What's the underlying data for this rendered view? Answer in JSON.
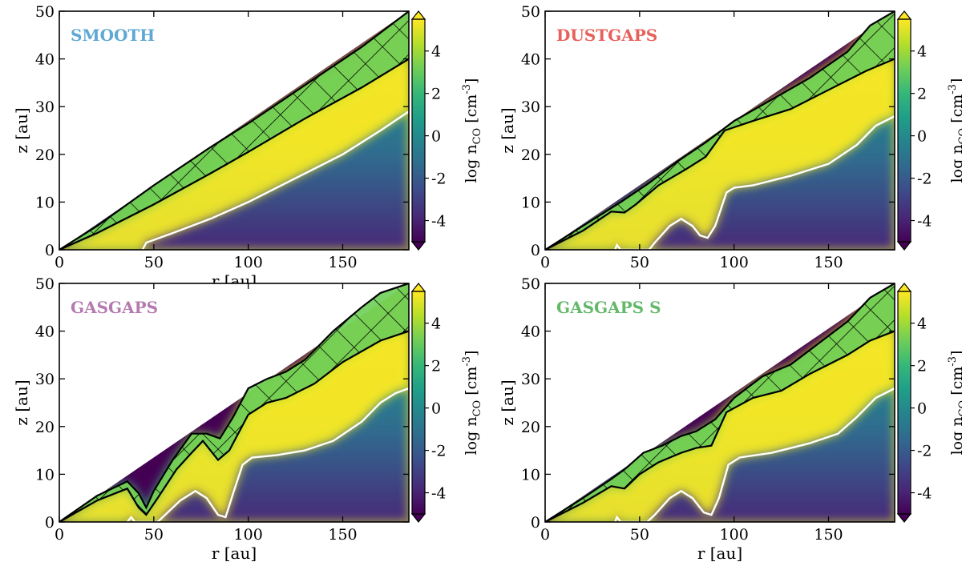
{
  "figure": {
    "columns": 2,
    "rows": 2
  },
  "colors": {
    "viridis": [
      "#440154",
      "#482878",
      "#3e4989",
      "#31688e",
      "#26828e",
      "#1f9e89",
      "#35b779",
      "#6ece58",
      "#b5de2b",
      "#fde725"
    ],
    "panel_titles": [
      "#5fa8d3",
      "#e8605a",
      "#b57ab0",
      "#63b86a"
    ],
    "snow_line": "#ffffff",
    "hatch": "#000000"
  },
  "chart_data": [
    {
      "type": "heatmap",
      "title": "SMOOTH",
      "xlabel": "r [au]",
      "ylabel": "z [au]",
      "xlim": [
        0,
        185
      ],
      "ylim": [
        0,
        50
      ],
      "xticks": [
        0,
        50,
        100,
        150
      ],
      "yticks": [
        0,
        10,
        20,
        30,
        40,
        50
      ],
      "colorbar": {
        "label_main": "log n",
        "label_sub": "CO",
        "label_unit": " [cm",
        "label_exp": "-3",
        "label_close": "]",
        "ticks": [
          4,
          2,
          0,
          -2,
          -4
        ],
        "range": [
          -5,
          5.5
        ],
        "extend": "both"
      },
      "molecular_layer_top": [
        [
          0,
          0
        ],
        [
          20,
          5
        ],
        [
          50,
          13.5
        ],
        [
          80,
          21.5
        ],
        [
          100,
          26.5
        ],
        [
          130,
          34.5
        ],
        [
          160,
          42.5
        ],
        [
          185,
          50
        ]
      ],
      "molecular_layer_bottom": [
        [
          0,
          0
        ],
        [
          20,
          3.5
        ],
        [
          50,
          9.5
        ],
        [
          80,
          16
        ],
        [
          100,
          20.5
        ],
        [
          130,
          27.5
        ],
        [
          160,
          34
        ],
        [
          185,
          40
        ]
      ],
      "freeze_out_contour": [
        [
          44,
          0
        ],
        [
          46,
          1.5
        ],
        [
          60,
          3.5
        ],
        [
          80,
          6.5
        ],
        [
          100,
          10
        ],
        [
          120,
          14
        ],
        [
          150,
          20
        ],
        [
          170,
          25
        ],
        [
          185,
          29
        ]
      ]
    },
    {
      "type": "heatmap",
      "title": "DUSTGAPS",
      "xlabel": "",
      "ylabel": "z [au]",
      "xlim": [
        0,
        185
      ],
      "ylim": [
        0,
        50
      ],
      "xticks": [
        0,
        50,
        100,
        150
      ],
      "yticks": [
        0,
        10,
        20,
        30,
        40,
        50
      ],
      "colorbar": {
        "label_main": "log n",
        "label_sub": "CO",
        "label_unit": " [cm",
        "label_exp": "-3",
        "label_close": "]",
        "ticks": [
          4,
          2,
          0,
          -2,
          -4
        ],
        "range": [
          -5,
          5.5
        ],
        "extend": "both"
      },
      "molecular_layer_top": [
        [
          0,
          0
        ],
        [
          20,
          5
        ],
        [
          40,
          10
        ],
        [
          55,
          14
        ],
        [
          70,
          18.5
        ],
        [
          85,
          22.5
        ],
        [
          100,
          27
        ],
        [
          120,
          31.5
        ],
        [
          140,
          36
        ],
        [
          160,
          41.5
        ],
        [
          172,
          47
        ],
        [
          185,
          50
        ]
      ],
      "molecular_layer_bottom": [
        [
          0,
          0
        ],
        [
          20,
          4
        ],
        [
          35,
          8
        ],
        [
          42,
          7.8
        ],
        [
          48,
          9.5
        ],
        [
          60,
          13.5
        ],
        [
          75,
          17
        ],
        [
          85,
          19.5
        ],
        [
          95,
          25
        ],
        [
          110,
          27
        ],
        [
          130,
          29.5
        ],
        [
          150,
          33.5
        ],
        [
          170,
          37.5
        ],
        [
          185,
          40
        ]
      ],
      "freeze_out_contour": [
        [
          37,
          0
        ],
        [
          38,
          1
        ],
        [
          40,
          0
        ],
        [
          55,
          0
        ],
        [
          58,
          1.5
        ],
        [
          66,
          5
        ],
        [
          72,
          6.5
        ],
        [
          78,
          5
        ],
        [
          82,
          3
        ],
        [
          86,
          2.5
        ],
        [
          90,
          5
        ],
        [
          96,
          12
        ],
        [
          100,
          13
        ],
        [
          110,
          13.5
        ],
        [
          130,
          15.5
        ],
        [
          150,
          18
        ],
        [
          165,
          22
        ],
        [
          175,
          26
        ],
        [
          185,
          28
        ]
      ]
    },
    {
      "type": "heatmap",
      "title": "GASGAPS",
      "xlabel": "r [au]",
      "ylabel": "z [au]",
      "xlim": [
        0,
        185
      ],
      "ylim": [
        0,
        50
      ],
      "xticks": [
        0,
        50,
        100,
        150
      ],
      "yticks": [
        0,
        10,
        20,
        30,
        40,
        50
      ],
      "colorbar": {
        "label_main": "log n",
        "label_sub": "CO",
        "label_unit": " [cm",
        "label_exp": "-3",
        "label_close": "]",
        "ticks": [
          4,
          2,
          0,
          -2,
          -4
        ],
        "range": [
          -5,
          5.5
        ],
        "extend": "both"
      },
      "molecular_layer_top": [
        [
          0,
          0
        ],
        [
          20,
          5.5
        ],
        [
          36,
          8.5
        ],
        [
          42,
          6
        ],
        [
          46,
          3
        ],
        [
          50,
          6.5
        ],
        [
          60,
          13
        ],
        [
          70,
          18.5
        ],
        [
          78,
          18.5
        ],
        [
          85,
          17.5
        ],
        [
          92,
          22
        ],
        [
          100,
          28
        ],
        [
          110,
          30
        ],
        [
          120,
          31.5
        ],
        [
          130,
          34
        ],
        [
          145,
          40
        ],
        [
          160,
          45
        ],
        [
          170,
          48
        ],
        [
          185,
          50
        ]
      ],
      "molecular_layer_bottom": [
        [
          0,
          0
        ],
        [
          20,
          4.5
        ],
        [
          36,
          7
        ],
        [
          42,
          3
        ],
        [
          46,
          1.5
        ],
        [
          52,
          5
        ],
        [
          62,
          11
        ],
        [
          70,
          14.5
        ],
        [
          76,
          17
        ],
        [
          84,
          13
        ],
        [
          90,
          15
        ],
        [
          100,
          22.5
        ],
        [
          110,
          25
        ],
        [
          120,
          26
        ],
        [
          135,
          29
        ],
        [
          150,
          33.5
        ],
        [
          170,
          38
        ],
        [
          185,
          40
        ]
      ],
      "freeze_out_contour": [
        [
          36,
          0
        ],
        [
          38,
          1
        ],
        [
          40,
          0
        ],
        [
          52,
          0
        ],
        [
          56,
          1.5
        ],
        [
          64,
          4.5
        ],
        [
          72,
          6.5
        ],
        [
          78,
          5
        ],
        [
          84,
          1.5
        ],
        [
          88,
          1
        ],
        [
          92,
          6
        ],
        [
          97,
          12
        ],
        [
          102,
          13.5
        ],
        [
          115,
          14
        ],
        [
          130,
          15
        ],
        [
          145,
          17
        ],
        [
          160,
          21
        ],
        [
          170,
          25
        ],
        [
          178,
          27
        ],
        [
          185,
          28
        ]
      ]
    },
    {
      "type": "heatmap",
      "title": "GASGAPS S",
      "xlabel": "r [au]",
      "ylabel": "z [au]",
      "xlim": [
        0,
        185
      ],
      "ylim": [
        0,
        50
      ],
      "xticks": [
        0,
        50,
        100,
        150
      ],
      "yticks": [
        0,
        10,
        20,
        30,
        40,
        50
      ],
      "colorbar": {
        "label_main": "log n",
        "label_sub": "CO",
        "label_unit": " [cm",
        "label_exp": "-3",
        "label_close": "]",
        "ticks": [
          4,
          2,
          0,
          -2,
          -4
        ],
        "range": [
          -5,
          5.5
        ],
        "extend": "both"
      },
      "molecular_layer_top": [
        [
          0,
          0
        ],
        [
          20,
          5
        ],
        [
          35,
          9
        ],
        [
          42,
          11
        ],
        [
          52,
          14.5
        ],
        [
          62,
          16
        ],
        [
          72,
          18
        ],
        [
          80,
          19
        ],
        [
          90,
          21.5
        ],
        [
          100,
          26
        ],
        [
          115,
          30.5
        ],
        [
          130,
          33
        ],
        [
          145,
          37.5
        ],
        [
          160,
          42
        ],
        [
          172,
          47
        ],
        [
          185,
          50
        ]
      ],
      "molecular_layer_bottom": [
        [
          0,
          0
        ],
        [
          20,
          4
        ],
        [
          35,
          7.5
        ],
        [
          42,
          7
        ],
        [
          50,
          10
        ],
        [
          60,
          12.5
        ],
        [
          72,
          14.5
        ],
        [
          80,
          15.5
        ],
        [
          88,
          16
        ],
        [
          96,
          23
        ],
        [
          110,
          26
        ],
        [
          125,
          27.5
        ],
        [
          140,
          31
        ],
        [
          160,
          35
        ],
        [
          172,
          38
        ],
        [
          185,
          40
        ]
      ],
      "freeze_out_contour": [
        [
          37,
          0
        ],
        [
          38,
          1
        ],
        [
          40,
          0
        ],
        [
          54,
          0
        ],
        [
          58,
          1.5
        ],
        [
          66,
          5
        ],
        [
          72,
          6.5
        ],
        [
          78,
          5
        ],
        [
          84,
          2
        ],
        [
          88,
          1.5
        ],
        [
          92,
          5
        ],
        [
          97,
          12
        ],
        [
          103,
          13.5
        ],
        [
          120,
          14.5
        ],
        [
          140,
          16.5
        ],
        [
          155,
          18.5
        ],
        [
          165,
          22
        ],
        [
          175,
          26
        ],
        [
          185,
          28
        ]
      ]
    }
  ]
}
